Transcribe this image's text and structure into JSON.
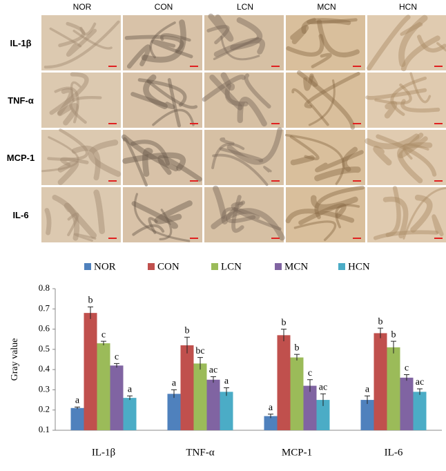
{
  "image_panel": {
    "columns": [
      "NOR",
      "CON",
      "LCN",
      "MCN",
      "HCN"
    ],
    "rows": [
      "IL-1β",
      "TNF-α",
      "MCP-1",
      "IL-6"
    ]
  },
  "chart_data": {
    "type": "bar",
    "y_label": "Gray value",
    "categories": [
      "IL-1β",
      "TNF-α",
      "MCP-1",
      "IL-6"
    ],
    "series": [
      {
        "name": "NOR",
        "color": "#4f81bd",
        "values": [
          0.21,
          0.28,
          0.17,
          0.25
        ],
        "errors": [
          0.005,
          0.02,
          0.01,
          0.02
        ],
        "letters": [
          "a",
          "a",
          "a",
          "a"
        ]
      },
      {
        "name": "CON",
        "color": "#c0504d",
        "values": [
          0.68,
          0.52,
          0.57,
          0.58
        ],
        "errors": [
          0.03,
          0.04,
          0.03,
          0.025
        ],
        "letters": [
          "b",
          "b",
          "b",
          "b"
        ]
      },
      {
        "name": "LCN",
        "color": "#9bbb59",
        "values": [
          0.53,
          0.43,
          0.46,
          0.51
        ],
        "errors": [
          0.01,
          0.03,
          0.015,
          0.03
        ],
        "letters": [
          "c",
          "bc",
          "b",
          "b"
        ]
      },
      {
        "name": "MCN",
        "color": "#8064a2",
        "values": [
          0.42,
          0.35,
          0.32,
          0.36
        ],
        "errors": [
          0.01,
          0.015,
          0.03,
          0.015
        ],
        "letters": [
          "c",
          "ac",
          "c",
          "c"
        ]
      },
      {
        "name": "HCN",
        "color": "#4bacc6",
        "values": [
          0.26,
          0.29,
          0.25,
          0.29
        ],
        "errors": [
          0.01,
          0.02,
          0.03,
          0.015
        ],
        "letters": [
          "a",
          "a",
          "ac",
          "ac"
        ]
      }
    ],
    "ylim": [
      0.1,
      0.8
    ],
    "yticks": [
      0.1,
      0.2,
      0.3,
      0.4,
      0.5,
      0.6,
      0.7,
      0.8
    ],
    "grid": false,
    "legend": "top"
  }
}
